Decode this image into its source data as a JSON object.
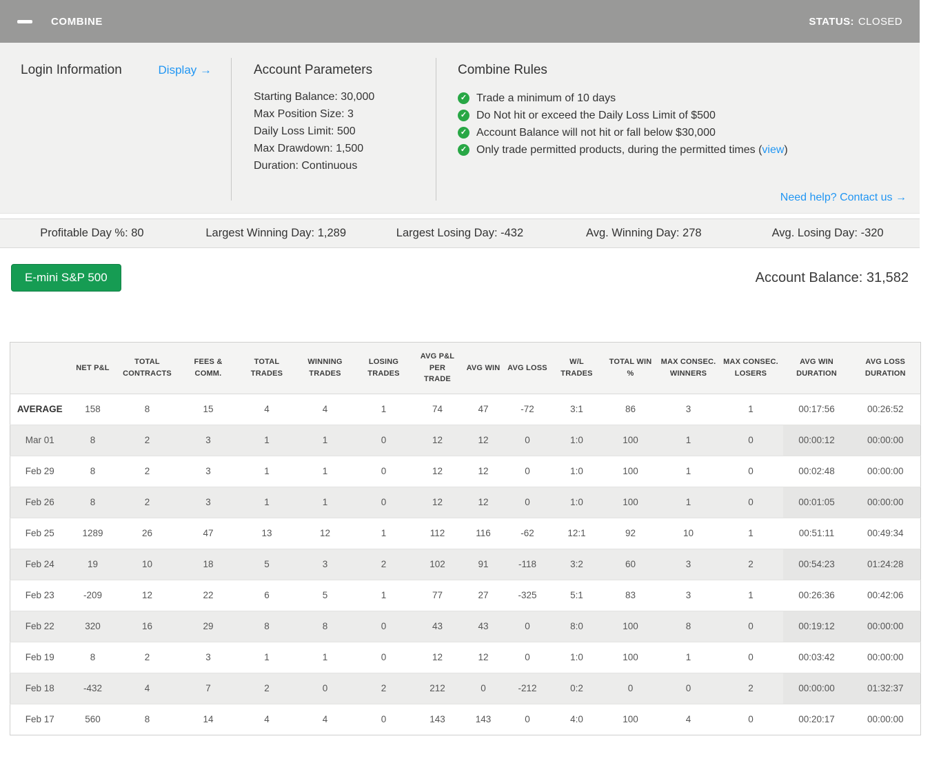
{
  "header": {
    "title": "COMBINE",
    "status_label": "STATUS:",
    "status_value": "CLOSED"
  },
  "login": {
    "title": "Login Information",
    "display_link": "Display →"
  },
  "account_parameters": {
    "title": "Account Parameters",
    "items": [
      "Starting Balance: 30,000",
      "Max Position Size: 3",
      "Daily Loss Limit: 500",
      "Max Drawdown: 1,500",
      "Duration: Continuous"
    ]
  },
  "combine_rules": {
    "title": "Combine Rules",
    "rules": [
      {
        "text": "Trade a minimum of 10 days",
        "link": "",
        "suffix": ""
      },
      {
        "text": "Do Not hit or exceed the Daily Loss Limit of $500",
        "link": "",
        "suffix": ""
      },
      {
        "text": "Account Balance will not hit or fall below $30,000",
        "link": "",
        "suffix": ""
      },
      {
        "text": "Only trade permitted products, during the permitted times (",
        "link": "view",
        "suffix": ")"
      }
    ]
  },
  "help_link": "Need help? Contact us →",
  "stats": [
    "Profitable Day %: 80",
    "Largest Winning Day: 1,289",
    "Largest Losing Day: -432",
    "Avg. Winning Day: 278",
    "Avg. Losing Day: -320"
  ],
  "instrument_button": "E-mini S&P 500",
  "account_balance": "Account Balance: 31,582",
  "table": {
    "columns": [
      "",
      "NET P&L",
      "TOTAL CONTRACTS",
      "FEES & COMM.",
      "TOTAL TRADES",
      "WINNING TRADES",
      "LOSING TRADES",
      "AVG P&L PER TRADE",
      "AVG WIN",
      "AVG LOSS",
      "W/L TRADES",
      "TOTAL WIN %",
      "MAX CONSEC. WINNERS",
      "MAX CONSEC. LOSERS",
      "AVG WIN DURATION",
      "AVG LOSS DURATION"
    ],
    "rows": [
      {
        "label": "AVERAGE",
        "values": [
          "158",
          "8",
          "15",
          "4",
          "4",
          "1",
          "74",
          "47",
          "-72",
          "3:1",
          "86",
          "3",
          "1",
          "00:17:56",
          "00:26:52"
        ]
      },
      {
        "label": "Mar 01",
        "values": [
          "8",
          "2",
          "3",
          "1",
          "1",
          "0",
          "12",
          "12",
          "0",
          "1:0",
          "100",
          "1",
          "0",
          "00:00:12",
          "00:00:00"
        ]
      },
      {
        "label": "Feb 29",
        "values": [
          "8",
          "2",
          "3",
          "1",
          "1",
          "0",
          "12",
          "12",
          "0",
          "1:0",
          "100",
          "1",
          "0",
          "00:02:48",
          "00:00:00"
        ]
      },
      {
        "label": "Feb 26",
        "values": [
          "8",
          "2",
          "3",
          "1",
          "1",
          "0",
          "12",
          "12",
          "0",
          "1:0",
          "100",
          "1",
          "0",
          "00:01:05",
          "00:00:00"
        ]
      },
      {
        "label": "Feb 25",
        "values": [
          "1289",
          "26",
          "47",
          "13",
          "12",
          "1",
          "112",
          "116",
          "-62",
          "12:1",
          "92",
          "10",
          "1",
          "00:51:11",
          "00:49:34"
        ]
      },
      {
        "label": "Feb 24",
        "values": [
          "19",
          "10",
          "18",
          "5",
          "3",
          "2",
          "102",
          "91",
          "-118",
          "3:2",
          "60",
          "3",
          "2",
          "00:54:23",
          "01:24:28"
        ]
      },
      {
        "label": "Feb 23",
        "values": [
          "-209",
          "12",
          "22",
          "6",
          "5",
          "1",
          "77",
          "27",
          "-325",
          "5:1",
          "83",
          "3",
          "1",
          "00:26:36",
          "00:42:06"
        ]
      },
      {
        "label": "Feb 22",
        "values": [
          "320",
          "16",
          "29",
          "8",
          "8",
          "0",
          "43",
          "43",
          "0",
          "8:0",
          "100",
          "8",
          "0",
          "00:19:12",
          "00:00:00"
        ]
      },
      {
        "label": "Feb 19",
        "values": [
          "8",
          "2",
          "3",
          "1",
          "1",
          "0",
          "12",
          "12",
          "0",
          "1:0",
          "100",
          "1",
          "0",
          "00:03:42",
          "00:00:00"
        ]
      },
      {
        "label": "Feb 18",
        "values": [
          "-432",
          "4",
          "7",
          "2",
          "0",
          "2",
          "212",
          "0",
          "-212",
          "0:2",
          "0",
          "0",
          "2",
          "00:00:00",
          "01:32:37"
        ]
      },
      {
        "label": "Feb 17",
        "values": [
          "560",
          "8",
          "14",
          "4",
          "4",
          "0",
          "143",
          "143",
          "0",
          "4:0",
          "100",
          "4",
          "0",
          "00:20:17",
          "00:00:00"
        ]
      }
    ]
  },
  "colors": {
    "header_gray": "#999998",
    "accent_blue": "#2196f3",
    "check_green": "#28a745",
    "button_green": "#169c53"
  }
}
